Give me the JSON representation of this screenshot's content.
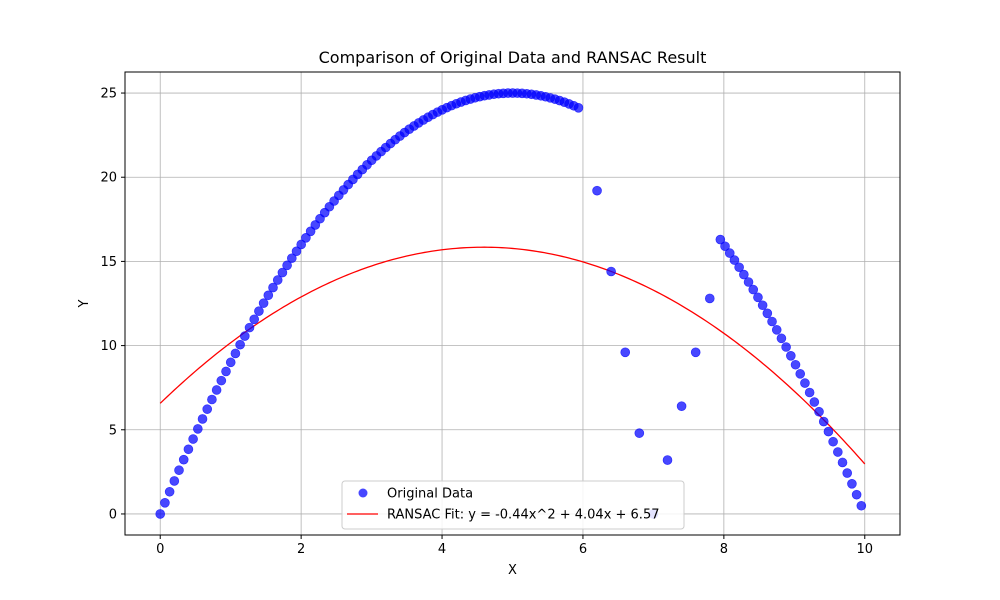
{
  "chart_data": {
    "type": "scatter",
    "title": "Comparison of Original Data and RANSAC Result",
    "xlabel": "X",
    "ylabel": "Y",
    "xlim": [
      -0.5,
      10.5
    ],
    "ylim": [
      -1.25,
      26.25
    ],
    "xticks": [
      0,
      2,
      4,
      6,
      8,
      10
    ],
    "yticks": [
      0,
      5,
      10,
      15,
      20,
      25
    ],
    "grid": true,
    "legend_placement": "lower-center",
    "series": [
      {
        "name": "Original Data",
        "kind": "scatter",
        "color": "#0000ff",
        "curve_segments": [
          {
            "formula": "-x^2 + 10x",
            "x_start": 0,
            "x_end": 6.0,
            "step": 0.0667
          },
          {
            "formula": "-x^2 + 10x",
            "x_start": 7.95,
            "x_end": 10.0,
            "step": 0.0667
          }
        ],
        "points": [
          {
            "x": 6.2,
            "y": 19.2
          },
          {
            "x": 6.4,
            "y": 14.4
          },
          {
            "x": 6.6,
            "y": 9.6
          },
          {
            "x": 6.8,
            "y": 4.8
          },
          {
            "x": 7.0,
            "y": 0.0
          },
          {
            "x": 7.2,
            "y": 3.2
          },
          {
            "x": 7.4,
            "y": 6.4
          },
          {
            "x": 7.6,
            "y": 9.6
          },
          {
            "x": 7.8,
            "y": 12.8
          }
        ]
      },
      {
        "name": "RANSAC Fit: y = -0.44x^2 + 4.04x + 6.57",
        "kind": "line",
        "color": "#ff0000",
        "coefficients": {
          "a": -0.44,
          "b": 4.04,
          "c": 6.57
        },
        "x_range": [
          0,
          10
        ]
      }
    ]
  }
}
